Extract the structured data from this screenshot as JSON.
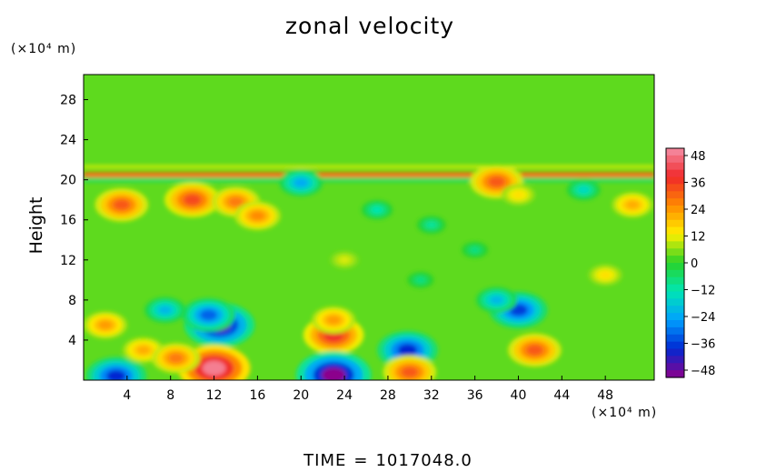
{
  "chart_data": {
    "type": "heatmap",
    "title": "zonal velocity",
    "ylabel": "Height",
    "xlabel": "",
    "x_unit_label": "(×10⁴ m)",
    "y_unit_label": "(×10⁴ m)",
    "xlim": [
      0,
      52.5
    ],
    "ylim": [
      0,
      30.5
    ],
    "x_ticks": [
      4,
      8,
      12,
      16,
      20,
      24,
      28,
      32,
      36,
      40,
      44,
      48
    ],
    "y_ticks": [
      4,
      8,
      12,
      16,
      20,
      24,
      28
    ],
    "colorbar": {
      "range": [
        -48,
        48
      ],
      "ticks": [
        "48",
        "36",
        "24",
        "12",
        "0",
        "−12",
        "−24",
        "−36",
        "−48"
      ],
      "colors": [
        "#f58fa6",
        "#f0282a",
        "#ff8a00",
        "#fff000",
        "#28d228",
        "#00e6b4",
        "#00a0ff",
        "#0028d2",
        "#8c008c"
      ]
    },
    "background_value": 3,
    "features": [
      {
        "kind": "band",
        "y": 20.5,
        "value": 28,
        "thickness": 0.5
      },
      {
        "kind": "band",
        "y": 20.0,
        "value": -6,
        "thickness": 0.4
      },
      {
        "kind": "band",
        "y": 21.3,
        "value": 10,
        "thickness": 0.3
      },
      {
        "kind": "blob",
        "x": 12.5,
        "y": 5.5,
        "value": -44
      },
      {
        "kind": "blob",
        "x": 11.5,
        "y": 6.5,
        "value": -30
      },
      {
        "kind": "blob",
        "x": 7.5,
        "y": 7.0,
        "value": -20
      },
      {
        "kind": "blob",
        "x": 23.0,
        "y": 4.5,
        "value": 36
      },
      {
        "kind": "blob",
        "x": 23.0,
        "y": 6.0,
        "value": 22
      },
      {
        "kind": "blob",
        "x": 40.0,
        "y": 7.0,
        "value": -34
      },
      {
        "kind": "blob",
        "x": 38.0,
        "y": 8.0,
        "value": -20
      },
      {
        "kind": "blob",
        "x": 41.5,
        "y": 3.0,
        "value": 30
      },
      {
        "kind": "blob",
        "x": 12.0,
        "y": 1.2,
        "value": 46
      },
      {
        "kind": "blob",
        "x": 23.0,
        "y": 0.5,
        "value": -48
      },
      {
        "kind": "blob",
        "x": 29.8,
        "y": 3.0,
        "value": -36
      },
      {
        "kind": "blob",
        "x": 30.0,
        "y": 0.8,
        "value": 30
      },
      {
        "kind": "blob",
        "x": 3.0,
        "y": 0.4,
        "value": -36
      },
      {
        "kind": "blob",
        "x": 2.0,
        "y": 5.5,
        "value": 22
      },
      {
        "kind": "blob",
        "x": 5.5,
        "y": 3.0,
        "value": 20
      },
      {
        "kind": "blob",
        "x": 8.5,
        "y": 2.2,
        "value": 26
      },
      {
        "kind": "blob",
        "x": 3.5,
        "y": 17.5,
        "value": 30
      },
      {
        "kind": "blob",
        "x": 10.0,
        "y": 18.0,
        "value": 32
      },
      {
        "kind": "blob",
        "x": 14.0,
        "y": 17.8,
        "value": 26
      },
      {
        "kind": "blob",
        "x": 16.0,
        "y": 16.4,
        "value": 24
      },
      {
        "kind": "blob",
        "x": 38.0,
        "y": 19.8,
        "value": 30
      },
      {
        "kind": "blob",
        "x": 50.5,
        "y": 17.5,
        "value": 20
      },
      {
        "kind": "blob",
        "x": 40.0,
        "y": 18.5,
        "value": 14
      },
      {
        "kind": "blob",
        "x": 27.0,
        "y": 17.0,
        "value": -12
      },
      {
        "kind": "blob",
        "x": 32.0,
        "y": 15.5,
        "value": -10
      },
      {
        "kind": "blob",
        "x": 20.0,
        "y": 19.7,
        "value": -22
      },
      {
        "kind": "blob",
        "x": 46.0,
        "y": 19.0,
        "value": -14
      },
      {
        "kind": "blob",
        "x": 31.0,
        "y": 10.0,
        "value": -8
      },
      {
        "kind": "blob",
        "x": 36.0,
        "y": 13.0,
        "value": -8
      },
      {
        "kind": "blob",
        "x": 48.0,
        "y": 10.5,
        "value": 14
      },
      {
        "kind": "blob",
        "x": 24.0,
        "y": 12.0,
        "value": 10
      }
    ]
  },
  "time_label": "TIME",
  "time_equals": "=",
  "time_value": "1017048.0"
}
